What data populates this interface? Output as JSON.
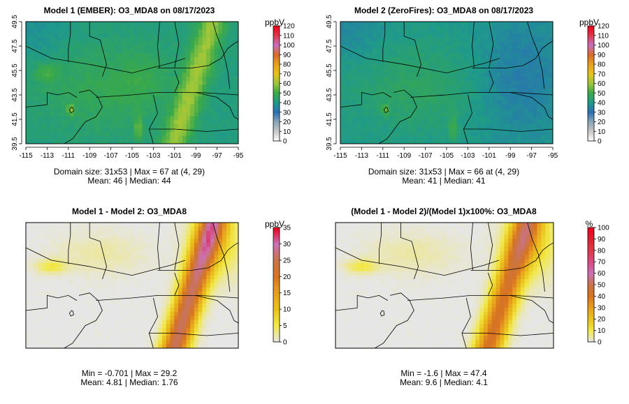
{
  "chart_data": [
    {
      "type": "heatmap",
      "title": "Model 1 (EMBER): O3_MDA8 on 08/17/2023",
      "xticks": [
        "-115",
        "-113",
        "-111",
        "-109",
        "-107",
        "-105",
        "-103",
        "-101",
        "-99",
        "-97",
        "-95"
      ],
      "yticks": [
        "39.5",
        "41.5",
        "43.5",
        "45.5",
        "47.5",
        "49.5"
      ],
      "xlim": [
        -115,
        -95
      ],
      "ylim": [
        39.5,
        49.5
      ],
      "colorbar": {
        "units": "ppbV",
        "min": 0,
        "max": 120,
        "labels": [
          "0",
          "10",
          "20",
          "30",
          "40",
          "50",
          "60",
          "70",
          "80",
          "90",
          "100",
          "110",
          "120"
        ],
        "colors": [
          "#ffffff",
          "#c8c8c8",
          "#8aa6b8",
          "#2a6fb5",
          "#1f9a8a",
          "#3aa94a",
          "#9bc63a",
          "#e6c31f",
          "#e8a020",
          "#d96a2a",
          "#c96ec0",
          "#e03a4a",
          "#e8001a"
        ]
      },
      "stats": [
        "Domain size: 31x53 | Max = 67 at (4, 29)",
        "Mean: 46 |  Median: 44"
      ],
      "field": "ember"
    },
    {
      "type": "heatmap",
      "title": "Model 2 (ZeroFires): O3_MDA8 on 08/17/2023",
      "xticks": [
        "-115",
        "-113",
        "-111",
        "-109",
        "-107",
        "-105",
        "-103",
        "-101",
        "-99",
        "-97",
        "-95"
      ],
      "yticks": [
        "39.5",
        "41.5",
        "43.5",
        "45.5",
        "47.5",
        "49.5"
      ],
      "xlim": [
        -115,
        -95
      ],
      "ylim": [
        39.5,
        49.5
      ],
      "colorbar": {
        "units": "ppbV",
        "min": 0,
        "max": 120,
        "labels": [
          "0",
          "10",
          "20",
          "30",
          "40",
          "50",
          "60",
          "70",
          "80",
          "90",
          "100",
          "110",
          "120"
        ],
        "colors": [
          "#ffffff",
          "#c8c8c8",
          "#8aa6b8",
          "#2a6fb5",
          "#1f9a8a",
          "#3aa94a",
          "#9bc63a",
          "#e6c31f",
          "#e8a020",
          "#d96a2a",
          "#c96ec0",
          "#e03a4a",
          "#e8001a"
        ]
      },
      "stats": [
        "Domain size: 31x53 | Max = 66 at (4, 29)",
        "Mean: 41 |  Median: 41"
      ],
      "field": "zerofires"
    },
    {
      "type": "heatmap",
      "title": "Model 1 - Model 2: O3_MDA8",
      "xticks": [],
      "yticks": [],
      "colorbar": {
        "units": "ppbV",
        "min": 0,
        "max": 35,
        "labels": [
          "0",
          "5",
          "10",
          "15",
          "20",
          "25",
          "30",
          "35"
        ],
        "colors": [
          "#e6e6e6",
          "#f2e84a",
          "#e9c21a",
          "#e8a020",
          "#d8741e",
          "#c9744a",
          "#cc70b8",
          "#e8001a"
        ]
      },
      "stats": [
        "Min = -0.701 | Max = 29.2",
        "Mean: 4.81 |  Median: 1.76"
      ],
      "field": "diff"
    },
    {
      "type": "heatmap",
      "title": "(Model 1 - Model 2)/(Model 1)x100%: O3_MDA8",
      "xticks": [],
      "yticks": [],
      "colorbar": {
        "units": "%",
        "min": 0,
        "max": 100,
        "labels": [
          "0",
          "10",
          "20",
          "30",
          "40",
          "50",
          "60",
          "70",
          "80",
          "90",
          "100"
        ],
        "colors": [
          "#e6e6e6",
          "#f2e84a",
          "#e9c21a",
          "#e8a020",
          "#d8741e",
          "#c9744a",
          "#cc70b8",
          "#d84a80",
          "#e03a4a",
          "#e0202e",
          "#e8001a"
        ]
      },
      "stats": [
        "Min = -1.6 | Max = 47.4",
        "Mean: 9.6 |  Median: 4.1"
      ],
      "field": "pct"
    }
  ]
}
